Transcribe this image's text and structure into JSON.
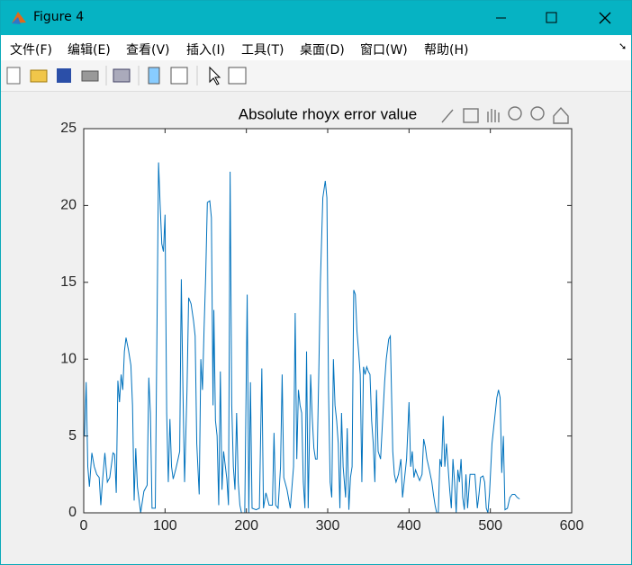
{
  "window": {
    "title": "Figure 4"
  },
  "menu": [
    "文件(F)",
    "编辑(E)",
    "查看(V)",
    "插入(I)",
    "工具(T)",
    "桌面(D)",
    "窗口(W)",
    "帮助(H)"
  ],
  "chart_data": {
    "type": "line",
    "title": "Absolute rhoyx error value",
    "x": [
      1,
      3,
      5,
      7,
      10,
      13,
      16,
      19,
      21,
      23,
      26,
      29,
      32,
      36,
      38,
      40,
      42,
      44,
      46,
      48,
      50,
      52,
      55,
      58,
      60,
      62,
      64,
      66,
      70,
      74,
      78,
      80,
      82,
      84,
      88,
      92,
      94,
      96,
      98,
      100,
      102,
      104,
      106,
      108,
      110,
      113,
      116,
      118,
      120,
      122,
      124,
      127,
      129,
      132,
      135,
      137,
      139,
      142,
      144,
      146,
      148,
      150,
      152,
      155,
      157,
      159,
      160,
      162,
      164,
      166,
      168,
      170,
      172,
      176,
      178,
      180,
      182,
      184,
      186,
      188,
      190,
      192,
      194,
      198,
      201,
      203,
      205,
      207,
      212,
      216,
      219,
      221,
      224,
      228,
      232,
      234,
      236,
      239,
      242,
      244,
      246,
      250,
      254,
      258,
      260,
      262,
      264,
      266,
      268,
      270,
      272,
      274,
      276,
      279,
      281,
      283,
      285,
      287,
      289,
      291,
      294,
      297,
      299,
      301,
      303,
      305,
      307,
      309,
      311,
      313,
      315,
      317,
      319,
      322,
      324,
      326,
      328,
      330,
      332,
      334,
      336,
      338,
      340,
      342,
      344,
      346,
      348,
      350,
      352,
      354,
      356,
      358,
      360,
      362,
      365,
      368,
      370,
      372,
      375,
      377,
      380,
      382,
      384,
      387,
      390,
      392,
      395,
      397,
      400,
      402,
      404,
      406,
      408,
      410,
      413,
      416,
      418,
      420,
      422,
      425,
      428,
      430,
      432,
      434,
      436,
      438,
      440,
      442,
      444,
      446,
      448,
      450,
      452,
      454,
      456,
      458,
      460,
      462,
      464,
      466,
      468,
      470,
      472,
      475,
      478,
      481,
      484,
      486,
      488,
      491,
      493,
      495,
      497,
      499,
      502,
      505,
      508,
      510,
      512,
      514,
      516,
      518,
      521,
      524,
      527,
      530,
      533,
      536
    ],
    "series": [
      {
        "color": "#0072bd",
        "values": [
          5,
          8.5,
          3,
          1.7,
          3.9,
          3,
          2.5,
          2.3,
          0.5,
          2,
          3.9,
          2,
          2.3,
          3.9,
          3.8,
          1.3,
          8.6,
          7.2,
          9,
          8,
          10.5,
          11.4,
          10.6,
          9.6,
          7,
          0.8,
          4.2,
          1.7,
          0,
          1.4,
          1.8,
          8.8,
          6.5,
          0.3,
          0.3,
          22.8,
          20,
          17.5,
          17,
          19.4,
          6.5,
          2,
          6.1,
          3,
          2.2,
          2.8,
          3.5,
          4,
          15.2,
          8,
          2,
          8,
          14,
          13.6,
          12.5,
          11.5,
          4.5,
          1.2,
          10,
          8,
          12,
          15.5,
          20.2,
          20.3,
          19.2,
          7,
          13.2,
          6,
          5,
          0.5,
          9.2,
          1.5,
          4,
          2.2,
          0.5,
          22.2,
          7,
          3,
          1.5,
          6.5,
          2,
          0.5,
          0,
          0,
          14.2,
          0,
          8.5,
          0.3,
          0.2,
          0.3,
          9.4,
          0.3,
          1.3,
          0.5,
          0.5,
          5.2,
          0.5,
          0.3,
          3,
          9,
          2.3,
          1.5,
          0.3,
          3,
          13,
          3.5,
          8,
          7,
          6.5,
          2,
          0.3,
          10.5,
          0.3,
          9,
          6.2,
          4.2,
          3.5,
          3.5,
          9,
          15,
          20.5,
          21.6,
          20.5,
          8,
          2,
          1,
          10,
          7,
          6,
          4.5,
          0.3,
          6.5,
          3,
          1,
          5.5,
          0.2,
          2.3,
          3,
          14.5,
          14.2,
          11.8,
          10.5,
          9,
          2,
          9.5,
          9,
          9.5,
          9.2,
          9,
          6,
          4.5,
          2,
          8,
          4,
          3.5,
          6.5,
          8.5,
          10,
          11.3,
          11.5,
          4,
          2.5,
          2,
          2.5,
          3.5,
          1,
          2.5,
          3.5,
          7.2,
          3,
          4,
          2.3,
          2.8,
          2.5,
          2.1,
          2.5,
          4.8,
          4.3,
          3.5,
          2.8,
          2,
          1.2,
          0.5,
          0,
          0,
          3.5,
          3,
          6.3,
          3,
          4.5,
          3,
          1.5,
          0.3,
          3.5,
          2,
          0,
          2.8,
          2,
          3.5,
          1,
          0.2,
          2.5,
          0.3,
          2.5,
          2.5,
          2.5,
          0.3,
          1.2,
          2.3,
          2.4,
          2,
          0.3,
          0,
          1.3,
          4.5,
          6,
          7.5,
          8,
          7.5,
          2.6,
          5,
          0.2,
          0.3,
          1,
          1.2,
          1.2,
          1,
          0.9
        ]
      }
    ],
    "xlim": [
      0,
      600
    ],
    "ylim": [
      0,
      25
    ],
    "xticks": [
      0,
      100,
      200,
      300,
      400,
      500,
      600
    ],
    "yticks": [
      0,
      5,
      10,
      15,
      20,
      25
    ]
  }
}
